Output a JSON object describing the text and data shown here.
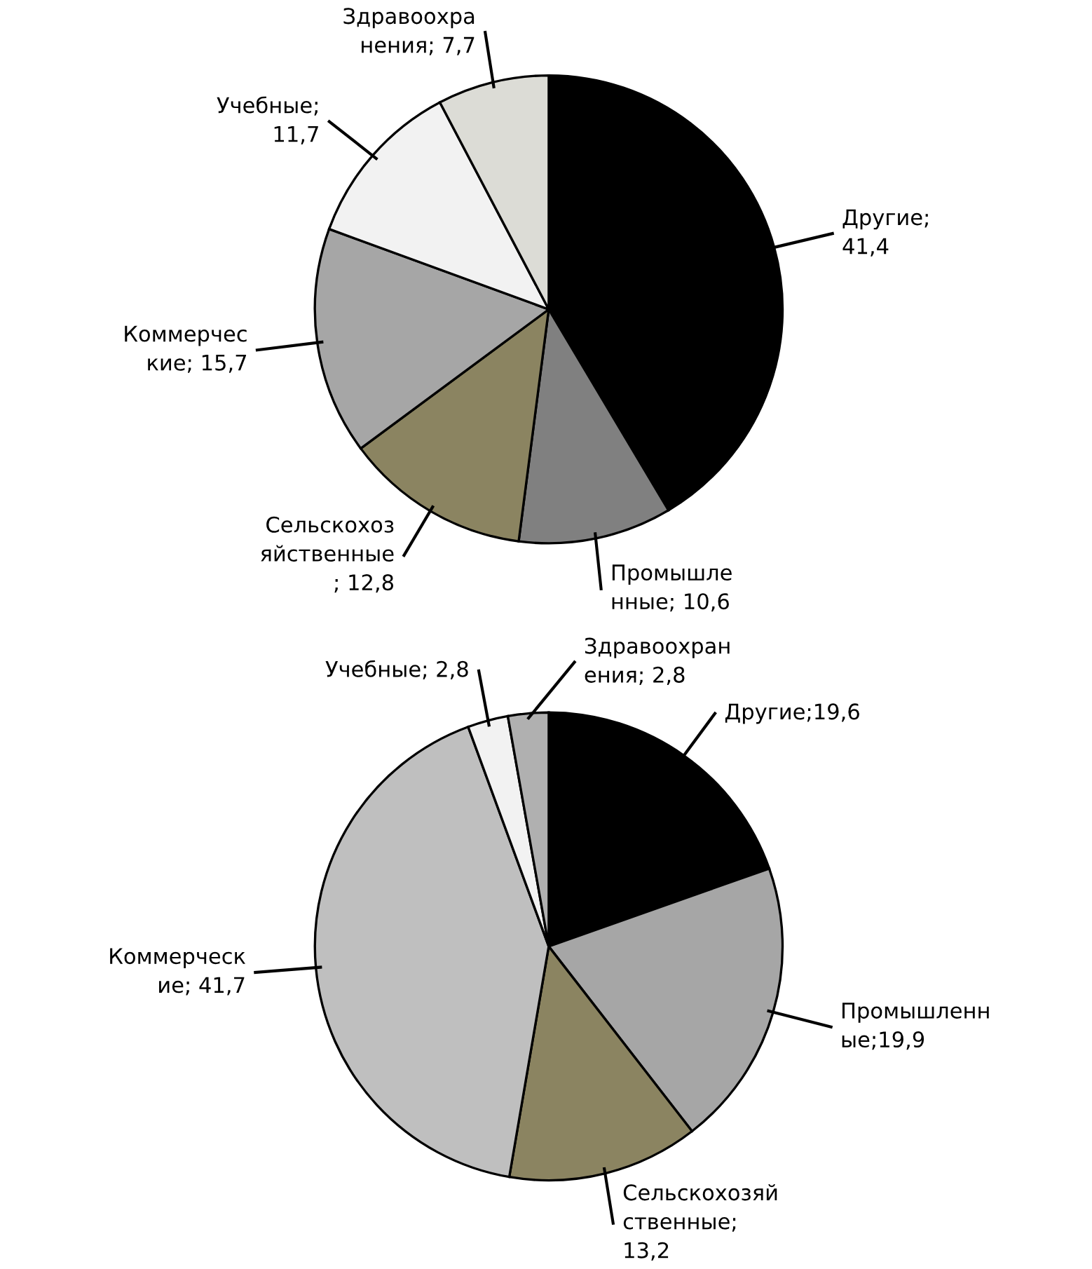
{
  "chart_data": [
    {
      "type": "pie",
      "categories": [
        "Другие;\n41,4",
        "Промышле\nнные; 10,6",
        "Сельскохоз\nяйственные\n; 12,8",
        "Коммерчес\nкие; 15,7",
        "Учебные;\n11,7",
        "Здравоохра\nнения; 7,7"
      ],
      "values": [
        41.4,
        10.6,
        12.8,
        15.7,
        11.7,
        7.7
      ],
      "colors": [
        "#000000",
        "#808080",
        "#8b8461",
        "#a6a6a6",
        "#f2f2f2",
        "#dcdcd6"
      ]
    },
    {
      "type": "pie",
      "categories": [
        "Другие;19,6",
        "Промышленн\nые;19,9",
        "Сельскохозяй\nственные;\n13,2",
        "Коммерческ\nие; 41,7",
        "Учебные; 2,8",
        "Здравоохран\nения; 2,8"
      ],
      "values": [
        19.6,
        19.9,
        13.2,
        41.7,
        2.8,
        2.8
      ],
      "colors": [
        "#000000",
        "#a6a6a6",
        "#8b8461",
        "#bfbfbf",
        "#f2f2f2",
        "#b0b0b0"
      ]
    }
  ]
}
